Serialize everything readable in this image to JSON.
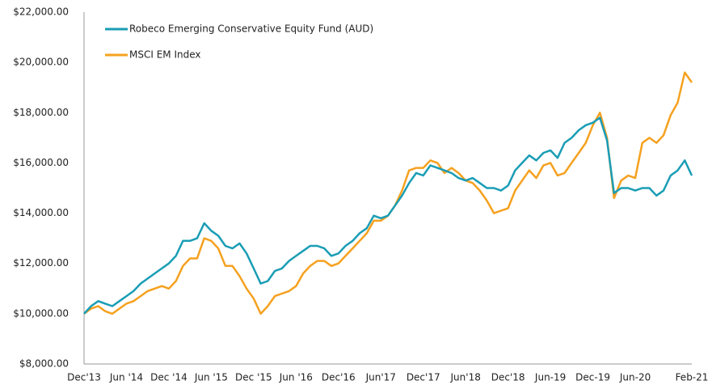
{
  "chart_data": {
    "type": "line",
    "categories": [
      "Dec'13",
      null,
      null,
      null,
      null,
      null,
      "Jun '14",
      null,
      null,
      null,
      null,
      null,
      "Dec '14",
      null,
      null,
      null,
      null,
      null,
      "Jun '15",
      null,
      null,
      null,
      null,
      null,
      "Dec '15",
      null,
      null,
      null,
      null,
      null,
      "Jun '16",
      null,
      null,
      null,
      null,
      null,
      "Dec'16",
      null,
      null,
      null,
      null,
      null,
      "Jun'17",
      null,
      null,
      null,
      null,
      null,
      "Dec'17",
      null,
      null,
      null,
      null,
      null,
      "Jun'18",
      null,
      null,
      null,
      null,
      null,
      "Dec'18",
      null,
      null,
      null,
      null,
      null,
      "Jun-19",
      null,
      null,
      null,
      null,
      null,
      "Dec-19",
      null,
      null,
      null,
      null,
      null,
      "Jun-20",
      null,
      null,
      null,
      null,
      null,
      null,
      null,
      "Feb-21"
    ],
    "series": [
      {
        "name": "Robeco Emerging Conservative Equity Fund (AUD)",
        "color": "#1a9db5",
        "values": [
          10000,
          10300,
          10500,
          10400,
          10300,
          10500,
          10700,
          10900,
          11200,
          11400,
          11600,
          11800,
          12000,
          12300,
          12900,
          12900,
          13000,
          13600,
          13300,
          13100,
          12700,
          12600,
          12800,
          12400,
          11800,
          11200,
          11300,
          11700,
          11800,
          12100,
          12300,
          12500,
          12700,
          12700,
          12600,
          12300,
          12400,
          12700,
          12900,
          13200,
          13400,
          13900,
          13800,
          13900,
          14300,
          14700,
          15200,
          15600,
          15500,
          15900,
          15800,
          15700,
          15600,
          15400,
          15300,
          15400,
          15200,
          15000,
          15000,
          14900,
          15100,
          15700,
          16000,
          16300,
          16100,
          16400,
          16500,
          16200,
          16800,
          17000,
          17300,
          17500,
          17600,
          17800,
          16900,
          14800,
          15000,
          15000,
          14900,
          15000,
          15000,
          14700,
          14900,
          15500,
          15700,
          16100,
          15500
        ]
      },
      {
        "name": "MSCI EM Index",
        "color": "#f5a11f",
        "values": [
          10000,
          10200,
          10300,
          10100,
          10000,
          10200,
          10400,
          10500,
          10700,
          10900,
          11000,
          11100,
          11000,
          11300,
          11900,
          12200,
          12200,
          13000,
          12900,
          12600,
          11900,
          11900,
          11500,
          11000,
          10600,
          10000,
          10300,
          10700,
          10800,
          10900,
          11100,
          11600,
          11900,
          12100,
          12100,
          11900,
          12000,
          12300,
          12600,
          12900,
          13200,
          13700,
          13700,
          13900,
          14300,
          14900,
          15700,
          15800,
          15800,
          16100,
          16000,
          15600,
          15800,
          15600,
          15300,
          15200,
          14900,
          14500,
          14000,
          14100,
          14200,
          14900,
          15300,
          15700,
          15400,
          15900,
          16000,
          15500,
          15600,
          16000,
          16400,
          16800,
          17500,
          18000,
          17000,
          14600,
          15300,
          15500,
          15400,
          16800,
          17000,
          16800,
          17100,
          17900,
          18400,
          19600,
          19200
        ]
      }
    ],
    "ylim": [
      8000,
      22000
    ],
    "yticks": [
      {
        "value": 8000,
        "label": "$8,000.00"
      },
      {
        "value": 10000,
        "label": "$10,000.00"
      },
      {
        "value": 12000,
        "label": "$12,000.00"
      },
      {
        "value": 14000,
        "label": "$14,000.00"
      },
      {
        "value": 16000,
        "label": "$16,000.00"
      },
      {
        "value": 18000,
        "label": "$18,000.00"
      },
      {
        "value": 20000,
        "label": "$20,000.00"
      },
      {
        "value": 22000,
        "label": "$22,000.00"
      }
    ],
    "legend": "top-left",
    "grid": false
  }
}
